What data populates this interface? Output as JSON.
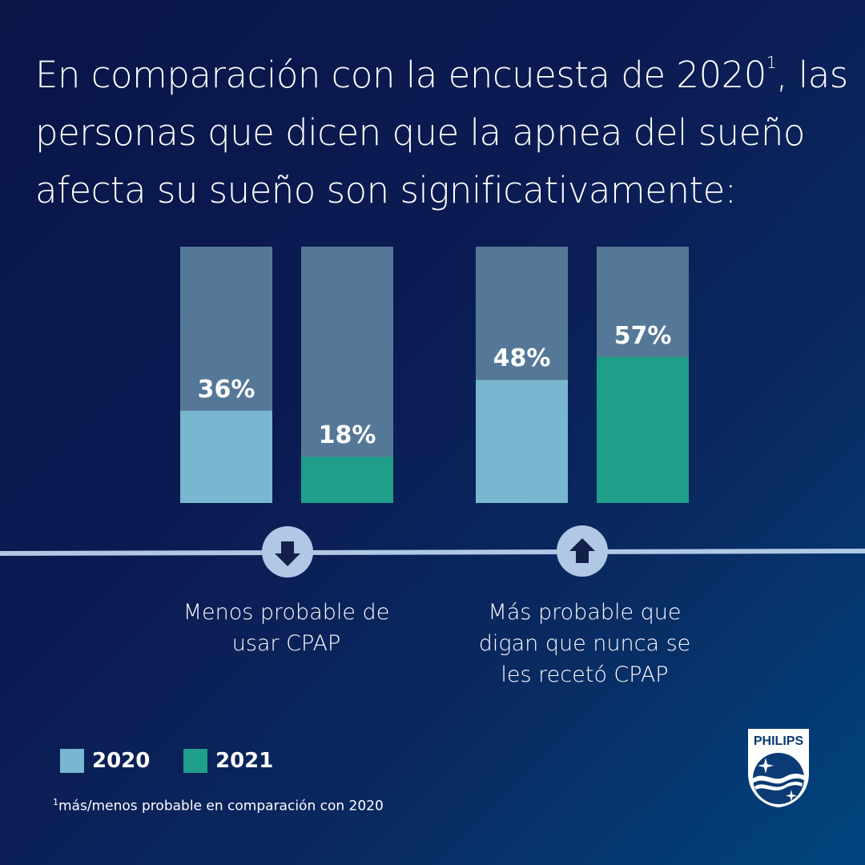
{
  "title": {
    "text_before": "En comparación con la encuesta de 2020",
    "superscript": "1",
    "text_after": ", las personas que dicen que la apnea del sueño afecta su sueño son significativamente:"
  },
  "chart_data": {
    "type": "bar",
    "categories": [
      "Menos probable de usar CPAP",
      "Más probable que digan que nunca se les recetó CPAP"
    ],
    "series": [
      {
        "name": "2020",
        "values": [
          36,
          48
        ],
        "color": "#78b7cf"
      },
      {
        "name": "2021",
        "values": [
          18,
          57
        ],
        "color": "#1f9e8a"
      }
    ],
    "data_labels": [
      [
        "36%",
        "48%"
      ],
      [
        "18%",
        "57%"
      ]
    ],
    "ylim": [
      0,
      100
    ],
    "track_color": "#557898",
    "directions": [
      "down",
      "up"
    ],
    "legend_position": "bottom-left",
    "grid": false
  },
  "captions": [
    "Menos probable de usar CPAP",
    "Más probable que digan que nunca se les recetó CPAP"
  ],
  "legend": [
    {
      "label": "2020",
      "color": "#78b7cf"
    },
    {
      "label": "2021",
      "color": "#1f9e8a"
    }
  ],
  "footnote": {
    "marker": "1",
    "text": "más/menos probable en comparación con 2020"
  },
  "logo": {
    "text": "PHILIPS"
  }
}
